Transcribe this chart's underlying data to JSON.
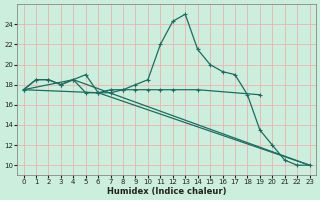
{
  "xlabel": "Humidex (Indice chaleur)",
  "bg_color": "#cceedd",
  "grid_color": "#f0b0b0",
  "line_color": "#1a6e60",
  "xlim": [
    -0.5,
    23.5
  ],
  "ylim": [
    9,
    26
  ],
  "xticks": [
    0,
    1,
    2,
    3,
    4,
    5,
    6,
    7,
    8,
    9,
    10,
    11,
    12,
    13,
    14,
    15,
    16,
    17,
    18,
    19,
    20,
    21,
    22,
    23
  ],
  "yticks": [
    10,
    12,
    14,
    16,
    18,
    20,
    22,
    24
  ],
  "line1_x": [
    0,
    1,
    2,
    3,
    4,
    5,
    6,
    7,
    8,
    9,
    10,
    11,
    12,
    13,
    14,
    15,
    16,
    17,
    18,
    19,
    20,
    21,
    22,
    23
  ],
  "line1_y": [
    17.5,
    18.5,
    18.5,
    18.0,
    18.5,
    19.0,
    17.2,
    17.5,
    17.5,
    18.0,
    18.5,
    22.0,
    24.3,
    25.0,
    21.5,
    20.0,
    19.3,
    19.0,
    17.0,
    13.5,
    12.0,
    10.5,
    10.0,
    10.0
  ],
  "line2_x": [
    0,
    1,
    2,
    3,
    4,
    5,
    6,
    7,
    8,
    9,
    10,
    11,
    12,
    14,
    19
  ],
  "line2_y": [
    17.5,
    18.5,
    18.5,
    18.0,
    18.5,
    17.2,
    17.2,
    17.2,
    17.5,
    17.5,
    17.5,
    17.5,
    17.5,
    17.5,
    17.0
  ],
  "line3_x": [
    0,
    4,
    23
  ],
  "line3_y": [
    17.5,
    18.5,
    10.0
  ],
  "line4_x": [
    0,
    6,
    23
  ],
  "line4_y": [
    17.5,
    17.2,
    10.0
  ]
}
